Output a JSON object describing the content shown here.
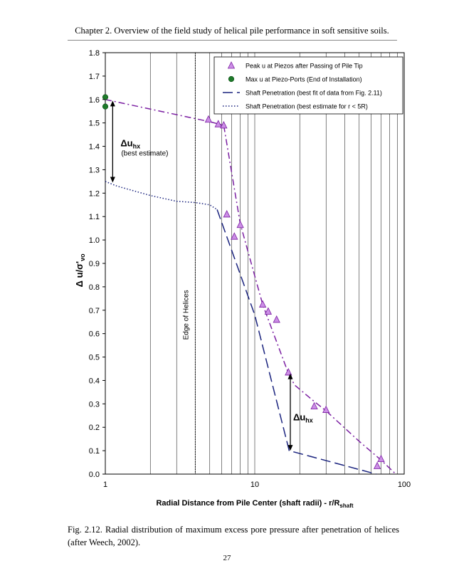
{
  "header": {
    "text": "Chapter 2.   Overview of the field study of helical pile performance in soft sensitive soils."
  },
  "caption": {
    "text": "Fig. 2.12.  Radial distribution of maximum excess pore pressure after penetration of helices (after Weech, 2002)."
  },
  "page_number": "27",
  "chart_data": {
    "type": "scatter",
    "title": "",
    "xlabel": "Radial Distance from Pile Center (shaft radii) - r/R",
    "xlabel_sub": "shaft",
    "ylabel_main": "Δ u/σ'",
    "ylabel_sub": "vo",
    "xscale": "log",
    "xlim": [
      1,
      100
    ],
    "ylim": [
      0,
      1.8
    ],
    "x_ticks": [
      "1",
      "10",
      "100"
    ],
    "y_ticks": [
      "0.0",
      "0.1",
      "0.2",
      "0.3",
      "0.4",
      "0.5",
      "0.6",
      "0.7",
      "0.8",
      "0.9",
      "1.0",
      "1.1",
      "1.2",
      "1.3",
      "1.4",
      "1.5",
      "1.6",
      "1.7",
      "1.8"
    ],
    "grid": true,
    "legend_position": "top-right",
    "series": [
      {
        "name": "Peak u at Piezos after Passing of Pile Tip",
        "kind": "markers",
        "marker": "triangle",
        "color": "#a24fd1",
        "points": [
          [
            4.9,
            1.515
          ],
          [
            5.7,
            1.495
          ],
          [
            6.2,
            1.49
          ],
          [
            6.5,
            1.11
          ],
          [
            7.3,
            1.015
          ],
          [
            8.0,
            1.065
          ],
          [
            11.3,
            0.725
          ],
          [
            12.3,
            0.695
          ],
          [
            14.0,
            0.66
          ],
          [
            16.8,
            0.435
          ],
          [
            25.0,
            0.29
          ],
          [
            30.0,
            0.275
          ],
          [
            66.0,
            0.035
          ],
          [
            70.0,
            0.065
          ]
        ]
      },
      {
        "name": "Max u at Piezo-Ports (End of Installation)",
        "kind": "markers",
        "marker": "circle",
        "color": "#1e7a2a",
        "points": [
          [
            1.0,
            1.61
          ],
          [
            1.0,
            1.57
          ]
        ]
      },
      {
        "name": "Shaft Penetration (best fit of data from Fig. 2.11)",
        "kind": "line",
        "dash": "dashed",
        "color": "#1a237e",
        "points": [
          [
            5.6,
            1.13
          ],
          [
            10.0,
            0.68
          ],
          [
            17.0,
            0.1
          ],
          [
            65.0,
            0.0
          ]
        ]
      },
      {
        "name": "Shaft Penetration (best estimate for r < 5R)",
        "kind": "line",
        "dash": "dotted",
        "color": "#1a237e",
        "points": [
          [
            1.0,
            1.25
          ],
          [
            1.2,
            1.23
          ],
          [
            2.0,
            1.19
          ],
          [
            3.0,
            1.165
          ],
          [
            4.0,
            1.16
          ],
          [
            5.0,
            1.15
          ],
          [
            5.6,
            1.13
          ]
        ]
      },
      {
        "name": "",
        "kind": "line",
        "dash": "dashdot",
        "color": "#7b1fa2",
        "points": [
          [
            1.0,
            1.6
          ],
          [
            5.0,
            1.505
          ],
          [
            6.2,
            1.49
          ],
          [
            8.0,
            1.07
          ],
          [
            11.3,
            0.725
          ],
          [
            16.8,
            0.43
          ],
          [
            18.5,
            0.38
          ],
          [
            25.0,
            0.31
          ],
          [
            30.0,
            0.27
          ],
          [
            50.0,
            0.14
          ],
          [
            70.0,
            0.06
          ],
          [
            88.0,
            0.0
          ]
        ]
      }
    ],
    "annotations": {
      "edge_of_helices": {
        "label": "Edge of Helices",
        "x": 4.0
      },
      "delta_top": {
        "main": "Δu",
        "sub": "hx",
        "note": "(best estimate)",
        "x": 1.12,
        "y_from": 1.595,
        "y_to": 1.245
      },
      "delta_bottom": {
        "main": "Δu",
        "sub": "hx",
        "x": 17.3,
        "y_from": 0.43,
        "y_to": 0.1
      }
    }
  }
}
